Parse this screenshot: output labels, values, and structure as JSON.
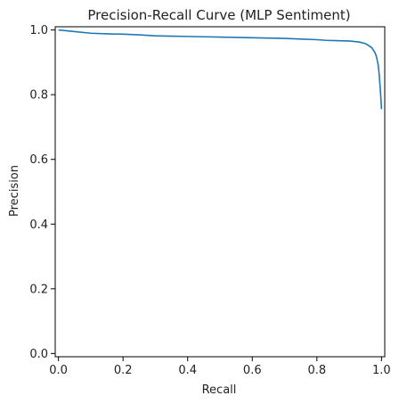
{
  "chart_data": {
    "type": "line",
    "title": "Precision-Recall Curve (MLP Sentiment)",
    "xlabel": "Recall",
    "ylabel": "Precision",
    "xlim": [
      -0.01,
      1.01
    ],
    "ylim": [
      -0.01,
      1.01
    ],
    "x_ticks": [
      "0.0",
      "0.2",
      "0.4",
      "0.6",
      "0.8",
      "1.0"
    ],
    "y_ticks": [
      "0.0",
      "0.2",
      "0.4",
      "0.6",
      "0.8",
      "1.0"
    ],
    "grid": false,
    "legend": "none",
    "series": [
      {
        "color": "#1f77b4",
        "x": [
          0.0,
          0.02,
          0.05,
          0.1,
          0.15,
          0.2,
          0.25,
          0.3,
          0.35,
          0.4,
          0.45,
          0.5,
          0.55,
          0.6,
          0.65,
          0.7,
          0.75,
          0.8,
          0.83,
          0.86,
          0.9,
          0.93,
          0.95,
          0.96,
          0.97,
          0.98,
          0.985,
          0.99,
          0.993,
          0.996,
          0.998,
          1.0
        ],
        "y": [
          1.0,
          0.998,
          0.995,
          0.99,
          0.988,
          0.987,
          0.985,
          0.982,
          0.981,
          0.98,
          0.979,
          0.978,
          0.977,
          0.976,
          0.975,
          0.974,
          0.972,
          0.97,
          0.968,
          0.967,
          0.966,
          0.963,
          0.958,
          0.952,
          0.945,
          0.93,
          0.915,
          0.89,
          0.86,
          0.82,
          0.79,
          0.755
        ]
      }
    ]
  }
}
